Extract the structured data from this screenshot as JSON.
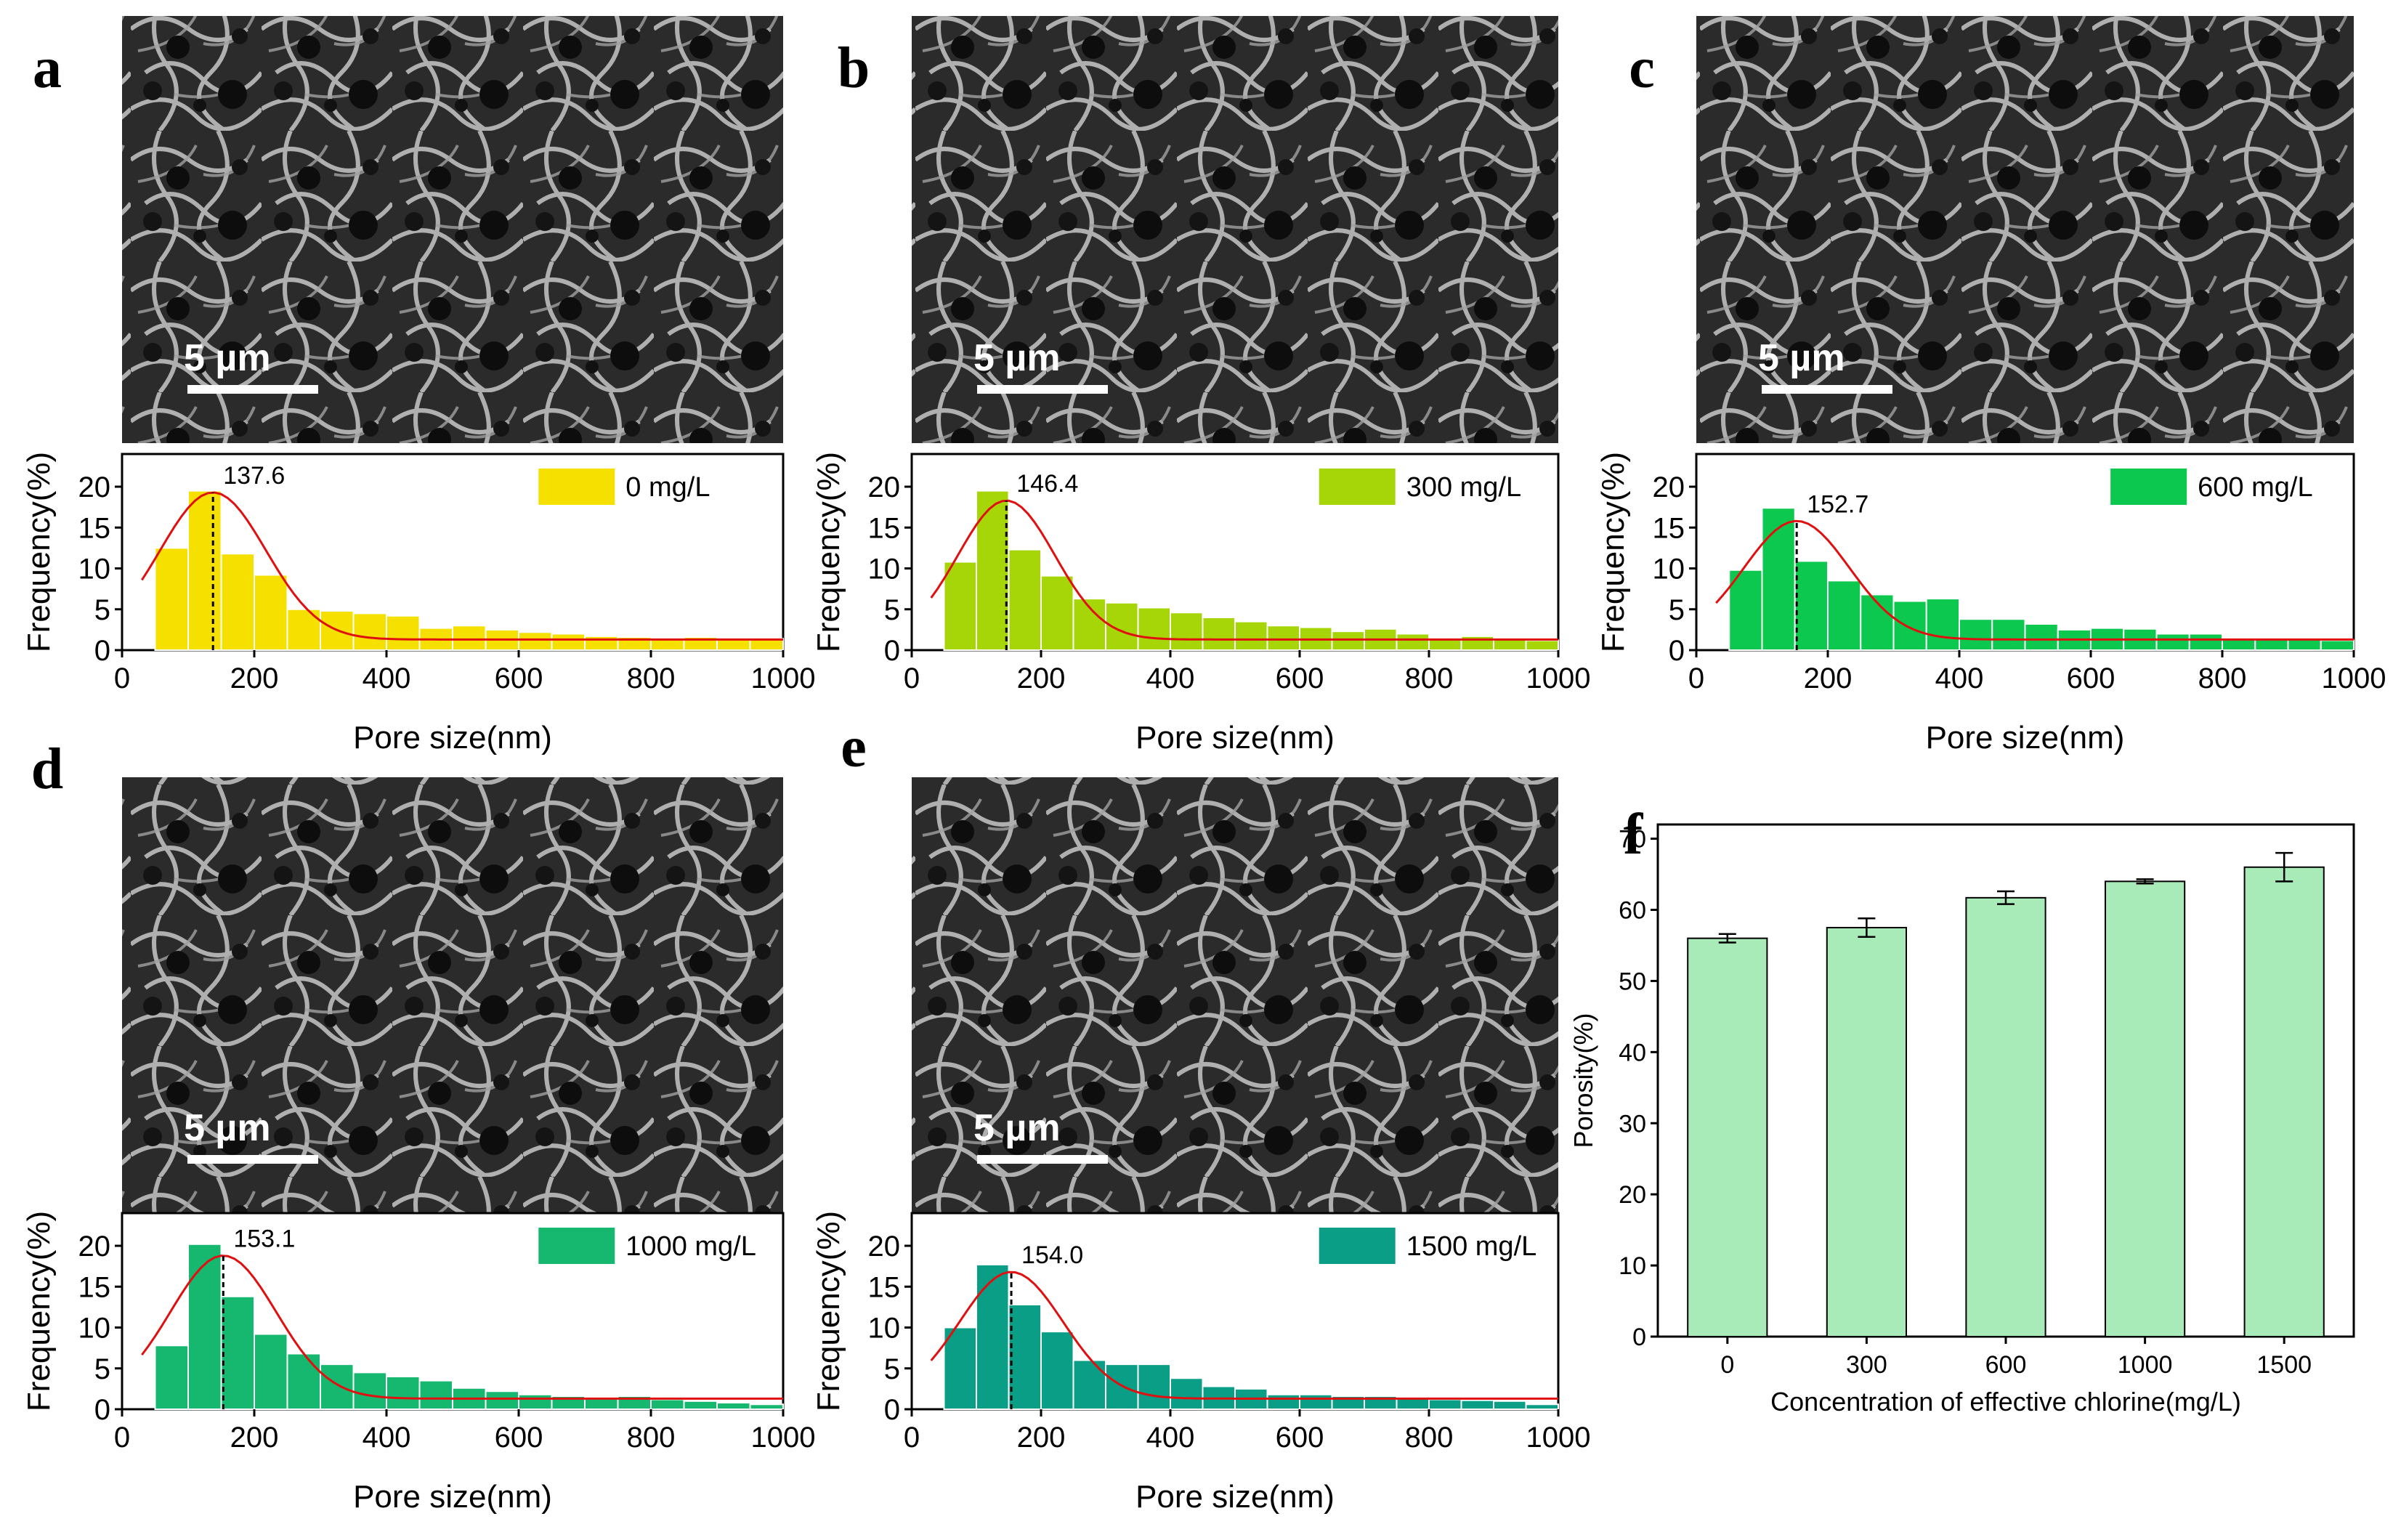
{
  "chart_data": [
    {
      "panel": "a",
      "type": "histogram",
      "scale_bar": "5 µm",
      "legend": "0 mg/L",
      "color": "#f5e000",
      "peak_label": "137.6",
      "peak": 137.6,
      "fit_amp": 18.0,
      "fit_sigma": 80,
      "ylabel": "Frequency(%)",
      "xlabel": "Pore size(nm)",
      "xlim": [
        0,
        1000
      ],
      "ylim": [
        0,
        24
      ],
      "xticks": [
        "0",
        "200",
        "400",
        "600",
        "800",
        "1000"
      ],
      "yticks": [
        "0",
        "5",
        "10",
        "15",
        "20"
      ],
      "bins": [
        [
          50,
          100,
          12.5
        ],
        [
          100,
          150,
          19.5
        ],
        [
          150,
          200,
          11.8
        ],
        [
          200,
          250,
          9.2
        ],
        [
          250,
          300,
          5.0
        ],
        [
          300,
          350,
          4.8
        ],
        [
          350,
          400,
          4.5
        ],
        [
          400,
          450,
          4.2
        ],
        [
          450,
          500,
          2.7
        ],
        [
          500,
          550,
          3.0
        ],
        [
          550,
          600,
          2.5
        ],
        [
          600,
          650,
          2.2
        ],
        [
          650,
          700,
          2.0
        ],
        [
          700,
          750,
          1.7
        ],
        [
          750,
          800,
          1.6
        ],
        [
          800,
          850,
          1.5
        ],
        [
          850,
          900,
          1.6
        ],
        [
          900,
          950,
          1.5
        ],
        [
          950,
          1000,
          1.4
        ]
      ]
    },
    {
      "panel": "b",
      "type": "histogram",
      "scale_bar": "5 µm",
      "legend": "300 mg/L",
      "color": "#a6d608",
      "peak_label": "146.4",
      "peak": 146.4,
      "fit_amp": 17.0,
      "fit_sigma": 75,
      "ylabel": "Frequency(%)",
      "xlabel": "Pore size(nm)",
      "xlim": [
        0,
        1000
      ],
      "ylim": [
        0,
        24
      ],
      "xticks": [
        "0",
        "200",
        "400",
        "600",
        "800",
        "1000"
      ],
      "yticks": [
        "0",
        "5",
        "10",
        "15",
        "20"
      ],
      "bins": [
        [
          50,
          100,
          10.8
        ],
        [
          100,
          150,
          19.5
        ],
        [
          150,
          200,
          12.3
        ],
        [
          200,
          250,
          9.1
        ],
        [
          250,
          300,
          6.3
        ],
        [
          300,
          350,
          5.8
        ],
        [
          350,
          400,
          5.2
        ],
        [
          400,
          450,
          4.6
        ],
        [
          450,
          500,
          4.0
        ],
        [
          500,
          550,
          3.5
        ],
        [
          550,
          600,
          3.0
        ],
        [
          600,
          650,
          2.8
        ],
        [
          650,
          700,
          2.3
        ],
        [
          700,
          750,
          2.6
        ],
        [
          750,
          800,
          2.0
        ],
        [
          800,
          850,
          1.5
        ],
        [
          850,
          900,
          1.7
        ],
        [
          900,
          950,
          1.4
        ],
        [
          950,
          1000,
          1.2
        ]
      ]
    },
    {
      "panel": "c",
      "type": "histogram",
      "scale_bar": "5 µm",
      "legend": "600 mg/L",
      "color": "#0dc84f",
      "peak_label": "152.7",
      "peak": 152.7,
      "fit_amp": 14.5,
      "fit_sigma": 80,
      "ylabel": "Frequency(%)",
      "xlabel": "Pore size(nm)",
      "xlim": [
        0,
        1000
      ],
      "ylim": [
        0,
        24
      ],
      "xticks": [
        "0",
        "200",
        "400",
        "600",
        "800",
        "1000"
      ],
      "yticks": [
        "0",
        "5",
        "10",
        "15",
        "20"
      ],
      "bins": [
        [
          50,
          100,
          9.8
        ],
        [
          100,
          150,
          17.4
        ],
        [
          150,
          200,
          10.9
        ],
        [
          200,
          250,
          8.5
        ],
        [
          250,
          300,
          6.8
        ],
        [
          300,
          350,
          6.0
        ],
        [
          350,
          400,
          6.3
        ],
        [
          400,
          450,
          3.8
        ],
        [
          450,
          500,
          3.8
        ],
        [
          500,
          550,
          3.2
        ],
        [
          550,
          600,
          2.5
        ],
        [
          600,
          650,
          2.7
        ],
        [
          650,
          700,
          2.6
        ],
        [
          700,
          750,
          2.0
        ],
        [
          750,
          800,
          2.0
        ],
        [
          800,
          850,
          1.5
        ],
        [
          850,
          900,
          1.4
        ],
        [
          900,
          950,
          1.3
        ],
        [
          950,
          1000,
          1.2
        ]
      ]
    },
    {
      "panel": "d",
      "type": "histogram",
      "scale_bar": "5 µm",
      "legend": "1000 mg/L",
      "color": "#16b86f",
      "peak_label": "153.1",
      "peak": 153.1,
      "fit_amp": 17.5,
      "fit_sigma": 80,
      "ylabel": "Frequency(%)",
      "xlabel": "Pore size(nm)",
      "xlim": [
        0,
        1000
      ],
      "ylim": [
        0,
        24
      ],
      "xticks": [
        "0",
        "200",
        "400",
        "600",
        "800",
        "1000"
      ],
      "yticks": [
        "0",
        "5",
        "10",
        "15",
        "20"
      ],
      "bins": [
        [
          50,
          100,
          7.8
        ],
        [
          100,
          150,
          20.2
        ],
        [
          150,
          200,
          13.8
        ],
        [
          200,
          250,
          9.2
        ],
        [
          250,
          300,
          6.8
        ],
        [
          300,
          350,
          5.5
        ],
        [
          350,
          400,
          4.5
        ],
        [
          400,
          450,
          4.0
        ],
        [
          450,
          500,
          3.5
        ],
        [
          500,
          550,
          2.6
        ],
        [
          550,
          600,
          2.2
        ],
        [
          600,
          650,
          1.8
        ],
        [
          650,
          700,
          1.6
        ],
        [
          700,
          750,
          1.4
        ],
        [
          750,
          800,
          1.6
        ],
        [
          800,
          850,
          1.2
        ],
        [
          850,
          900,
          1.0
        ],
        [
          900,
          950,
          0.8
        ],
        [
          950,
          1000,
          0.6
        ]
      ]
    },
    {
      "panel": "e",
      "type": "histogram",
      "scale_bar": "5 µm",
      "legend": "1500 mg/L",
      "color": "#0a9e87",
      "peak_label": "154.0",
      "peak": 154.0,
      "fit_amp": 15.5,
      "fit_sigma": 80,
      "ylabel": "Frequency(%)",
      "xlabel": "Pore size(nm)",
      "xlim": [
        0,
        1000
      ],
      "ylim": [
        0,
        24
      ],
      "xticks": [
        "0",
        "200",
        "400",
        "600",
        "800",
        "1000"
      ],
      "yticks": [
        "0",
        "5",
        "10",
        "15",
        "20"
      ],
      "bins": [
        [
          50,
          100,
          10.0
        ],
        [
          100,
          150,
          17.7
        ],
        [
          150,
          200,
          12.8
        ],
        [
          200,
          250,
          9.5
        ],
        [
          250,
          300,
          6.0
        ],
        [
          300,
          350,
          5.5
        ],
        [
          350,
          400,
          5.5
        ],
        [
          400,
          450,
          3.8
        ],
        [
          450,
          500,
          2.8
        ],
        [
          500,
          550,
          2.5
        ],
        [
          550,
          600,
          1.8
        ],
        [
          600,
          650,
          1.8
        ],
        [
          650,
          700,
          1.6
        ],
        [
          700,
          750,
          1.6
        ],
        [
          750,
          800,
          1.5
        ],
        [
          800,
          850,
          1.2
        ],
        [
          850,
          900,
          1.1
        ],
        [
          900,
          950,
          1.0
        ],
        [
          950,
          1000,
          0.6
        ]
      ]
    },
    {
      "panel": "f",
      "type": "bar",
      "categories": [
        "0",
        "300",
        "600",
        "1000",
        "1500"
      ],
      "values": [
        56.0,
        57.5,
        61.7,
        64.0,
        66.0
      ],
      "errors": [
        0.6,
        1.3,
        0.9,
        0.3,
        2.0
      ],
      "ylabel": "Porosity(%)",
      "xlabel": "Concentration of effective chlorine(mg/L)",
      "ylim": [
        0,
        72
      ],
      "yticks": [
        "0",
        "10",
        "20",
        "30",
        "40",
        "50",
        "60",
        "70"
      ],
      "color": "#a8eab8"
    }
  ]
}
